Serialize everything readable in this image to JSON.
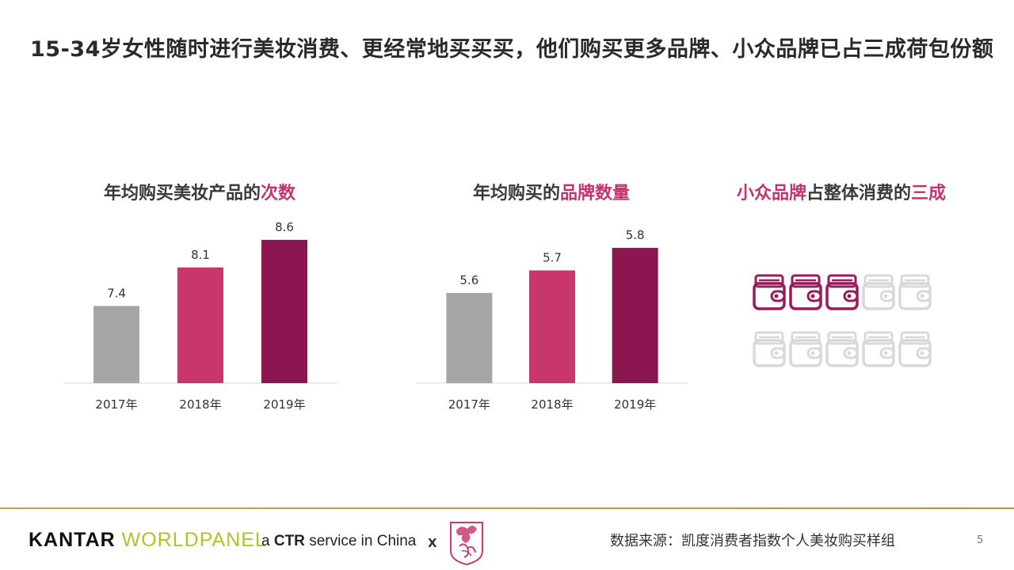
{
  "title": "15-34岁女性随时进行美妆消费、更经常地买买买，他们购买更多品牌、小众品牌已占三成荷包份额",
  "colors": {
    "year_2017": "#a6a6a6",
    "year_2018": "#c8376c",
    "year_2019": "#8c1650",
    "highlight": "#c3346e",
    "wallet_filled": "#9a1a5b",
    "wallet_empty": "#d9d9d9",
    "gold_rule": "#c9a24a"
  },
  "wallet_section": {
    "title_parts": [
      "小众品牌",
      "占整体消费的",
      "三成"
    ],
    "total": 10,
    "filled": 3,
    "icon": "wallet-icon"
  },
  "chart_data": [
    {
      "type": "bar",
      "title_parts": [
        "年均购买美妆产品的",
        "次数"
      ],
      "categories": [
        "2017年",
        "2018年",
        "2019年"
      ],
      "values": [
        7.4,
        8.1,
        8.6
      ],
      "value_labels": [
        "7.4",
        "8.1",
        "8.6"
      ],
      "xlabel": "",
      "ylabel": "",
      "ylim": [
        6.0,
        8.7
      ],
      "grid": false,
      "legend": "none"
    },
    {
      "type": "bar",
      "title_parts": [
        "年均购买的",
        "品牌数量"
      ],
      "categories": [
        "2017年",
        "2018年",
        "2019年"
      ],
      "values": [
        5.6,
        5.7,
        5.8
      ],
      "value_labels": [
        "5.6",
        "5.7",
        "5.8"
      ],
      "xlabel": "",
      "ylabel": "",
      "ylim": [
        5.2,
        5.86
      ],
      "grid": false,
      "legend": "none"
    }
  ],
  "footer": {
    "kantar": "KANTAR",
    "worldpanel": "WORLDPANEL",
    "ctr_prefix": "a ",
    "ctr_bold": "CTR",
    "ctr_suffix": " service in China",
    "x": "X",
    "source": "数据来源：凯度消费者指数个人美妆购买样组",
    "page": "5"
  }
}
